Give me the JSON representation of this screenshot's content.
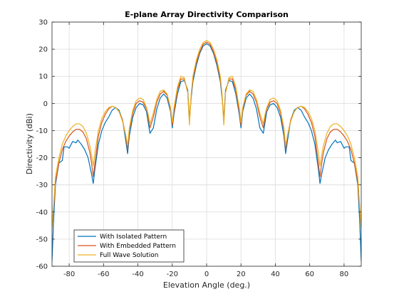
{
  "chart_data": {
    "type": "line",
    "title": "E-plane Array Directivity Comparison",
    "xlabel": "Elevation Angle (deg.)",
    "ylabel": "Directivity (dBi)",
    "xlim": [
      -90,
      90
    ],
    "ylim": [
      -60,
      30
    ],
    "xticks": [
      -80,
      -60,
      -40,
      -20,
      0,
      20,
      40,
      60,
      80
    ],
    "yticks": [
      -60,
      -50,
      -40,
      -30,
      -20,
      -10,
      0,
      10,
      20,
      30
    ],
    "grid": true,
    "legend_position": "bottom-left",
    "series": [
      {
        "name": "With Isolated Pattern",
        "color": "#0072BD",
        "points": [
          [
            -90,
            -58
          ],
          [
            -89,
            -42
          ],
          [
            -88,
            -30
          ],
          [
            -86,
            -22
          ],
          [
            -84,
            -21
          ],
          [
            -83,
            -16
          ],
          [
            -81,
            -16
          ],
          [
            -80,
            -16.5
          ],
          [
            -78,
            -14
          ],
          [
            -76,
            -14.5
          ],
          [
            -75,
            -13.5
          ],
          [
            -73,
            -15
          ],
          [
            -71,
            -17
          ],
          [
            -69,
            -20
          ],
          [
            -67,
            -26
          ],
          [
            -66,
            -29.5
          ],
          [
            -65,
            -24
          ],
          [
            -63,
            -15
          ],
          [
            -61,
            -10
          ],
          [
            -59,
            -7
          ],
          [
            -57,
            -5
          ],
          [
            -55,
            -2.5
          ],
          [
            -53,
            -1.5
          ],
          [
            -51,
            -2.5
          ],
          [
            -49,
            -6
          ],
          [
            -47,
            -14
          ],
          [
            -46,
            -18.5
          ],
          [
            -45,
            -12
          ],
          [
            -43,
            -5
          ],
          [
            -41,
            -1.5
          ],
          [
            -39,
            0
          ],
          [
            -37,
            -0.5
          ],
          [
            -35,
            -3
          ],
          [
            -34,
            -7
          ],
          [
            -33,
            -11
          ],
          [
            -31,
            -9
          ],
          [
            -29,
            -2
          ],
          [
            -27,
            2
          ],
          [
            -25,
            3.5
          ],
          [
            -23,
            2
          ],
          [
            -21,
            -3
          ],
          [
            -20,
            -9
          ],
          [
            -19,
            -4
          ],
          [
            -17,
            3.5
          ],
          [
            -15,
            8
          ],
          [
            -13,
            8.5
          ],
          [
            -11,
            5
          ],
          [
            -10,
            -6
          ],
          [
            -9,
            2
          ],
          [
            -8,
            8
          ],
          [
            -6,
            14
          ],
          [
            -4,
            18.5
          ],
          [
            -2,
            21.2
          ],
          [
            0,
            22
          ],
          [
            2,
            21.2
          ],
          [
            4,
            18.5
          ],
          [
            6,
            14
          ],
          [
            8,
            8
          ],
          [
            9,
            2
          ],
          [
            10,
            -6
          ],
          [
            11,
            5
          ],
          [
            13,
            8.5
          ],
          [
            15,
            8
          ],
          [
            17,
            3.5
          ],
          [
            19,
            -4
          ],
          [
            20,
            -9
          ],
          [
            21,
            -3
          ],
          [
            23,
            2
          ],
          [
            25,
            3.5
          ],
          [
            27,
            2
          ],
          [
            29,
            -2
          ],
          [
            31,
            -9
          ],
          [
            33,
            -11
          ],
          [
            34,
            -7
          ],
          [
            35,
            -3
          ],
          [
            37,
            -0.5
          ],
          [
            39,
            0
          ],
          [
            41,
            -1.5
          ],
          [
            43,
            -5
          ],
          [
            45,
            -12
          ],
          [
            46,
            -18.5
          ],
          [
            47,
            -14
          ],
          [
            49,
            -6
          ],
          [
            51,
            -2.5
          ],
          [
            53,
            -1.5
          ],
          [
            55,
            -2.5
          ],
          [
            57,
            -5
          ],
          [
            59,
            -7
          ],
          [
            61,
            -10
          ],
          [
            63,
            -15
          ],
          [
            65,
            -24
          ],
          [
            66,
            -29.5
          ],
          [
            67,
            -26
          ],
          [
            69,
            -20
          ],
          [
            71,
            -17
          ],
          [
            73,
            -15
          ],
          [
            75,
            -13.5
          ],
          [
            76,
            -14.5
          ],
          [
            78,
            -14
          ],
          [
            80,
            -16.5
          ],
          [
            81,
            -16
          ],
          [
            83,
            -16
          ],
          [
            84,
            -21
          ],
          [
            86,
            -22
          ],
          [
            88,
            -30
          ],
          [
            89,
            -42
          ],
          [
            90,
            -58
          ]
        ]
      },
      {
        "name": "With Embedded Pattern",
        "color": "#D95319",
        "points": [
          [
            -90,
            -45
          ],
          [
            -89,
            -38
          ],
          [
            -88,
            -29
          ],
          [
            -86,
            -22
          ],
          [
            -84,
            -17
          ],
          [
            -82,
            -14
          ],
          [
            -80,
            -12
          ],
          [
            -78,
            -10.5
          ],
          [
            -76,
            -9.5
          ],
          [
            -74,
            -9.5
          ],
          [
            -72,
            -10.5
          ],
          [
            -70,
            -13
          ],
          [
            -68,
            -18
          ],
          [
            -67,
            -22
          ],
          [
            -66,
            -27
          ],
          [
            -65,
            -22
          ],
          [
            -63,
            -12
          ],
          [
            -61,
            -7
          ],
          [
            -59,
            -4
          ],
          [
            -57,
            -2
          ],
          [
            -55,
            -1
          ],
          [
            -53,
            -1.5
          ],
          [
            -51,
            -3
          ],
          [
            -49,
            -6
          ],
          [
            -47,
            -12
          ],
          [
            -46,
            -17
          ],
          [
            -45,
            -10
          ],
          [
            -43,
            -3.5
          ],
          [
            -41,
            0
          ],
          [
            -39,
            1
          ],
          [
            -37,
            0.5
          ],
          [
            -35,
            -2
          ],
          [
            -34,
            -5
          ],
          [
            -33,
            -9
          ],
          [
            -31,
            -5
          ],
          [
            -29,
            0.5
          ],
          [
            -27,
            3.5
          ],
          [
            -25,
            4.5
          ],
          [
            -23,
            3
          ],
          [
            -21,
            -2
          ],
          [
            -20,
            -8
          ],
          [
            -19,
            -3
          ],
          [
            -17,
            5
          ],
          [
            -15,
            9
          ],
          [
            -13,
            9
          ],
          [
            -11,
            4
          ],
          [
            -10,
            -7
          ],
          [
            -9,
            3
          ],
          [
            -8,
            9
          ],
          [
            -6,
            15
          ],
          [
            -4,
            19
          ],
          [
            -2,
            21.8
          ],
          [
            0,
            22.6
          ],
          [
            2,
            21.8
          ],
          [
            4,
            19
          ],
          [
            6,
            15
          ],
          [
            8,
            9
          ],
          [
            9,
            3
          ],
          [
            10,
            -7
          ],
          [
            11,
            4
          ],
          [
            13,
            9
          ],
          [
            15,
            9
          ],
          [
            17,
            5
          ],
          [
            19,
            -3
          ],
          [
            20,
            -8
          ],
          [
            21,
            -2
          ],
          [
            23,
            3
          ],
          [
            25,
            4.5
          ],
          [
            27,
            3.5
          ],
          [
            29,
            0.5
          ],
          [
            31,
            -5
          ],
          [
            33,
            -9
          ],
          [
            34,
            -5
          ],
          [
            35,
            -2
          ],
          [
            37,
            0.5
          ],
          [
            39,
            1
          ],
          [
            41,
            0
          ],
          [
            43,
            -3.5
          ],
          [
            45,
            -10
          ],
          [
            46,
            -17
          ],
          [
            47,
            -12
          ],
          [
            49,
            -6
          ],
          [
            51,
            -3
          ],
          [
            53,
            -1.5
          ],
          [
            55,
            -1
          ],
          [
            57,
            -2
          ],
          [
            59,
            -4
          ],
          [
            61,
            -7
          ],
          [
            63,
            -12
          ],
          [
            65,
            -22
          ],
          [
            66,
            -27
          ],
          [
            67,
            -22
          ],
          [
            68,
            -18
          ],
          [
            70,
            -13
          ],
          [
            72,
            -10.5
          ],
          [
            74,
            -9.5
          ],
          [
            76,
            -9.5
          ],
          [
            78,
            -10.5
          ],
          [
            80,
            -12
          ],
          [
            82,
            -14
          ],
          [
            84,
            -17
          ],
          [
            86,
            -22
          ],
          [
            88,
            -29
          ],
          [
            89,
            -38
          ],
          [
            90,
            -45
          ]
        ]
      },
      {
        "name": "Full Wave Solution",
        "color": "#EDB120",
        "points": [
          [
            -90,
            -46
          ],
          [
            -89,
            -37
          ],
          [
            -88,
            -27
          ],
          [
            -86,
            -20
          ],
          [
            -84,
            -15
          ],
          [
            -82,
            -12
          ],
          [
            -80,
            -10
          ],
          [
            -78,
            -8.5
          ],
          [
            -76,
            -7.5
          ],
          [
            -74,
            -7.5
          ],
          [
            -72,
            -8.5
          ],
          [
            -70,
            -11
          ],
          [
            -68,
            -15.5
          ],
          [
            -67,
            -19
          ],
          [
            -66,
            -23
          ],
          [
            -65,
            -18
          ],
          [
            -63,
            -10
          ],
          [
            -61,
            -5.5
          ],
          [
            -59,
            -3
          ],
          [
            -57,
            -1.5
          ],
          [
            -55,
            -1
          ],
          [
            -53,
            -1.5
          ],
          [
            -51,
            -3
          ],
          [
            -49,
            -6.5
          ],
          [
            -47,
            -12
          ],
          [
            -46,
            -15.5
          ],
          [
            -45,
            -9
          ],
          [
            -43,
            -2.5
          ],
          [
            -41,
            1
          ],
          [
            -39,
            2
          ],
          [
            -37,
            1.5
          ],
          [
            -35,
            -1.5
          ],
          [
            -34,
            -4
          ],
          [
            -33,
            -7.5
          ],
          [
            -31,
            -3.5
          ],
          [
            -29,
            1.5
          ],
          [
            -27,
            4.5
          ],
          [
            -25,
            5
          ],
          [
            -23,
            3.5
          ],
          [
            -21,
            -1.5
          ],
          [
            -20,
            -7
          ],
          [
            -19,
            -1.5
          ],
          [
            -17,
            6
          ],
          [
            -15,
            10
          ],
          [
            -13,
            9.5
          ],
          [
            -11,
            4
          ],
          [
            -10,
            -8
          ],
          [
            -9,
            3.5
          ],
          [
            -8,
            10
          ],
          [
            -6,
            16
          ],
          [
            -4,
            20
          ],
          [
            -2,
            22.5
          ],
          [
            0,
            23.2
          ],
          [
            2,
            22.5
          ],
          [
            4,
            20
          ],
          [
            6,
            16
          ],
          [
            8,
            10
          ],
          [
            9,
            3.5
          ],
          [
            10,
            -8
          ],
          [
            11,
            4
          ],
          [
            13,
            9.5
          ],
          [
            15,
            10
          ],
          [
            17,
            6
          ],
          [
            19,
            -1.5
          ],
          [
            20,
            -7
          ],
          [
            21,
            -1.5
          ],
          [
            23,
            3.5
          ],
          [
            25,
            5
          ],
          [
            27,
            4.5
          ],
          [
            29,
            1.5
          ],
          [
            31,
            -3.5
          ],
          [
            33,
            -7.5
          ],
          [
            34,
            -4
          ],
          [
            35,
            -1.5
          ],
          [
            37,
            1.5
          ],
          [
            39,
            2
          ],
          [
            41,
            1
          ],
          [
            43,
            -2.5
          ],
          [
            45,
            -9
          ],
          [
            46,
            -15.5
          ],
          [
            47,
            -12
          ],
          [
            49,
            -6.5
          ],
          [
            51,
            -3
          ],
          [
            53,
            -1.5
          ],
          [
            55,
            -1
          ],
          [
            57,
            -1.5
          ],
          [
            59,
            -3
          ],
          [
            61,
            -5.5
          ],
          [
            63,
            -10
          ],
          [
            65,
            -18
          ],
          [
            66,
            -23
          ],
          [
            67,
            -19
          ],
          [
            68,
            -15.5
          ],
          [
            70,
            -11
          ],
          [
            72,
            -8.5
          ],
          [
            74,
            -7.5
          ],
          [
            76,
            -7.5
          ],
          [
            78,
            -8.5
          ],
          [
            80,
            -10
          ],
          [
            82,
            -12
          ],
          [
            84,
            -15
          ],
          [
            86,
            -20
          ],
          [
            88,
            -27
          ],
          [
            89,
            -37
          ],
          [
            90,
            -46
          ]
        ]
      }
    ]
  }
}
